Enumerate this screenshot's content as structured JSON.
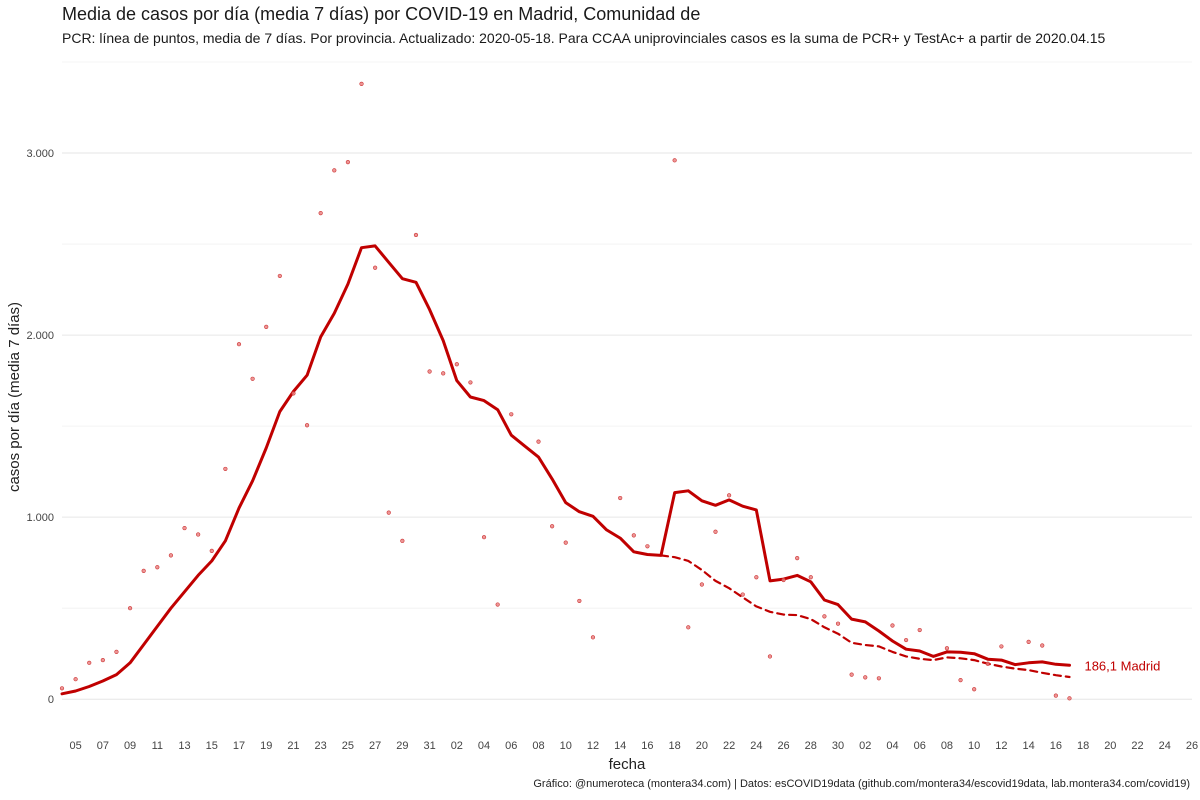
{
  "chart_data": {
    "type": "line",
    "title": "Media de casos por día (media 7 días) por COVID-19 en Madrid, Comunidad de",
    "subtitle": "PCR: línea de puntos, media de 7 días. Por provincia. Actualizado: 2020-05-18. Para CCAA uniprovinciales casos es la suma de PCR+ y TestAc+ a partir de 2020.04.15",
    "caption": "Gráfico: @numeroteca (montera34.com) | Datos: esCOVID19data (github.com/montera34/escovid19data, lab.montera34.com/covid19)",
    "xlabel": "fecha",
    "ylabel": "casos por día (media 7 días)",
    "xlim": [
      "2020-03-04",
      "2020-05-26"
    ],
    "ylim": [
      -180,
      3500
    ],
    "grid": true,
    "color": "#c00000",
    "y_ticks": [
      {
        "value": 0,
        "label": "0"
      },
      {
        "value": 1000,
        "label": "1.000"
      },
      {
        "value": 2000,
        "label": "2.000"
      },
      {
        "value": 3000,
        "label": "3.000"
      }
    ],
    "x_ticks": [
      {
        "date": "2020-03-05",
        "label": "05"
      },
      {
        "date": "2020-03-07",
        "label": "07"
      },
      {
        "date": "2020-03-09",
        "label": "09"
      },
      {
        "date": "2020-03-11",
        "label": "11"
      },
      {
        "date": "2020-03-13",
        "label": "13"
      },
      {
        "date": "2020-03-15",
        "label": "15"
      },
      {
        "date": "2020-03-17",
        "label": "17"
      },
      {
        "date": "2020-03-19",
        "label": "19"
      },
      {
        "date": "2020-03-21",
        "label": "21"
      },
      {
        "date": "2020-03-23",
        "label": "23"
      },
      {
        "date": "2020-03-25",
        "label": "25"
      },
      {
        "date": "2020-03-27",
        "label": "27"
      },
      {
        "date": "2020-03-29",
        "label": "29"
      },
      {
        "date": "2020-03-31",
        "label": "31"
      },
      {
        "date": "2020-04-02",
        "label": "02"
      },
      {
        "date": "2020-04-04",
        "label": "04"
      },
      {
        "date": "2020-04-06",
        "label": "06"
      },
      {
        "date": "2020-04-08",
        "label": "08"
      },
      {
        "date": "2020-04-10",
        "label": "10"
      },
      {
        "date": "2020-04-12",
        "label": "12"
      },
      {
        "date": "2020-04-14",
        "label": "14"
      },
      {
        "date": "2020-04-16",
        "label": "16"
      },
      {
        "date": "2020-04-18",
        "label": "18"
      },
      {
        "date": "2020-04-20",
        "label": "20"
      },
      {
        "date": "2020-04-22",
        "label": "22"
      },
      {
        "date": "2020-04-24",
        "label": "24"
      },
      {
        "date": "2020-04-26",
        "label": "26"
      },
      {
        "date": "2020-04-28",
        "label": "28"
      },
      {
        "date": "2020-04-30",
        "label": "30"
      },
      {
        "date": "2020-05-02",
        "label": "02"
      },
      {
        "date": "2020-05-04",
        "label": "04"
      },
      {
        "date": "2020-05-06",
        "label": "06"
      },
      {
        "date": "2020-05-08",
        "label": "08"
      },
      {
        "date": "2020-05-10",
        "label": "10"
      },
      {
        "date": "2020-05-12",
        "label": "12"
      },
      {
        "date": "2020-05-14",
        "label": "14"
      },
      {
        "date": "2020-05-16",
        "label": "16"
      },
      {
        "date": "2020-05-18",
        "label": "18"
      },
      {
        "date": "2020-05-20",
        "label": "20"
      },
      {
        "date": "2020-05-22",
        "label": "22"
      },
      {
        "date": "2020-05-24",
        "label": "24"
      },
      {
        "date": "2020-05-26",
        "label": "26"
      }
    ],
    "end_label": "186,1 Madrid",
    "end_label_point": {
      "date": "2020-05-17",
      "value": 186.1
    },
    "series": [
      {
        "style": "solid",
        "points": [
          [
            "2020-03-04",
            30
          ],
          [
            "2020-03-05",
            45
          ],
          [
            "2020-03-06",
            70
          ],
          [
            "2020-03-07",
            100
          ],
          [
            "2020-03-08",
            135
          ],
          [
            "2020-03-09",
            200
          ],
          [
            "2020-03-10",
            300
          ],
          [
            "2020-03-11",
            400
          ],
          [
            "2020-03-12",
            500
          ],
          [
            "2020-03-13",
            590
          ],
          [
            "2020-03-14",
            680
          ],
          [
            "2020-03-15",
            760
          ],
          [
            "2020-03-16",
            870
          ],
          [
            "2020-03-17",
            1050
          ],
          [
            "2020-03-18",
            1200
          ],
          [
            "2020-03-19",
            1380
          ],
          [
            "2020-03-20",
            1580
          ],
          [
            "2020-03-21",
            1690
          ],
          [
            "2020-03-22",
            1780
          ],
          [
            "2020-03-23",
            1990
          ],
          [
            "2020-03-24",
            2120
          ],
          [
            "2020-03-25",
            2280
          ],
          [
            "2020-03-26",
            2480
          ],
          [
            "2020-03-27",
            2490
          ],
          [
            "2020-03-28",
            2400
          ],
          [
            "2020-03-29",
            2310
          ],
          [
            "2020-03-30",
            2290
          ],
          [
            "2020-03-31",
            2140
          ],
          [
            "2020-04-01",
            1970
          ],
          [
            "2020-04-02",
            1750
          ],
          [
            "2020-04-03",
            1660
          ],
          [
            "2020-04-04",
            1640
          ],
          [
            "2020-04-05",
            1590
          ],
          [
            "2020-04-06",
            1450
          ],
          [
            "2020-04-07",
            1390
          ],
          [
            "2020-04-08",
            1330
          ],
          [
            "2020-04-09",
            1210
          ],
          [
            "2020-04-10",
            1080
          ],
          [
            "2020-04-11",
            1030
          ],
          [
            "2020-04-12",
            1005
          ],
          [
            "2020-04-13",
            930
          ],
          [
            "2020-04-14",
            885
          ],
          [
            "2020-04-15",
            810
          ],
          [
            "2020-04-16",
            795
          ],
          [
            "2020-04-17",
            790
          ],
          [
            "2020-04-18",
            1135
          ],
          [
            "2020-04-19",
            1145
          ],
          [
            "2020-04-20",
            1090
          ],
          [
            "2020-04-21",
            1065
          ],
          [
            "2020-04-22",
            1095
          ],
          [
            "2020-04-23",
            1060
          ],
          [
            "2020-04-24",
            1040
          ],
          [
            "2020-04-25",
            650
          ],
          [
            "2020-04-26",
            660
          ],
          [
            "2020-04-27",
            680
          ],
          [
            "2020-04-28",
            645
          ],
          [
            "2020-04-29",
            545
          ],
          [
            "2020-04-30",
            520
          ],
          [
            "2020-05-01",
            440
          ],
          [
            "2020-05-02",
            425
          ],
          [
            "2020-05-03",
            375
          ],
          [
            "2020-05-04",
            320
          ],
          [
            "2020-05-05",
            275
          ],
          [
            "2020-05-06",
            265
          ],
          [
            "2020-05-07",
            235
          ],
          [
            "2020-05-08",
            260
          ],
          [
            "2020-05-09",
            258
          ],
          [
            "2020-05-10",
            250
          ],
          [
            "2020-05-11",
            220
          ],
          [
            "2020-05-12",
            215
          ],
          [
            "2020-05-13",
            190
          ],
          [
            "2020-05-14",
            200
          ],
          [
            "2020-05-15",
            205
          ],
          [
            "2020-05-16",
            192
          ],
          [
            "2020-05-17",
            186.1
          ]
        ]
      },
      {
        "style": "dashed",
        "points": [
          [
            "2020-04-17",
            790
          ],
          [
            "2020-04-18",
            780
          ],
          [
            "2020-04-19",
            760
          ],
          [
            "2020-04-20",
            710
          ],
          [
            "2020-04-21",
            650
          ],
          [
            "2020-04-22",
            610
          ],
          [
            "2020-04-23",
            560
          ],
          [
            "2020-04-24",
            510
          ],
          [
            "2020-04-25",
            480
          ],
          [
            "2020-04-26",
            465
          ],
          [
            "2020-04-27",
            462
          ],
          [
            "2020-04-28",
            440
          ],
          [
            "2020-04-29",
            395
          ],
          [
            "2020-04-30",
            360
          ],
          [
            "2020-05-01",
            310
          ],
          [
            "2020-05-02",
            298
          ],
          [
            "2020-05-03",
            290
          ],
          [
            "2020-05-04",
            260
          ],
          [
            "2020-05-05",
            235
          ],
          [
            "2020-05-06",
            222
          ],
          [
            "2020-05-07",
            215
          ],
          [
            "2020-05-08",
            230
          ],
          [
            "2020-05-09",
            225
          ],
          [
            "2020-05-10",
            215
          ],
          [
            "2020-05-11",
            195
          ],
          [
            "2020-05-12",
            180
          ],
          [
            "2020-05-13",
            168
          ],
          [
            "2020-05-14",
            160
          ],
          [
            "2020-05-15",
            145
          ],
          [
            "2020-05-16",
            132
          ],
          [
            "2020-05-17",
            122
          ]
        ]
      },
      {
        "style": "points",
        "points": [
          [
            "2020-03-04",
            60
          ],
          [
            "2020-03-05",
            110
          ],
          [
            "2020-03-06",
            200
          ],
          [
            "2020-03-07",
            215
          ],
          [
            "2020-03-08",
            260
          ],
          [
            "2020-03-09",
            500
          ],
          [
            "2020-03-10",
            705
          ],
          [
            "2020-03-11",
            725
          ],
          [
            "2020-03-12",
            790
          ],
          [
            "2020-03-13",
            940
          ],
          [
            "2020-03-14",
            905
          ],
          [
            "2020-03-15",
            815
          ],
          [
            "2020-03-16",
            1265
          ],
          [
            "2020-03-17",
            1950
          ],
          [
            "2020-03-18",
            1760
          ],
          [
            "2020-03-19",
            2045
          ],
          [
            "2020-03-20",
            2325
          ],
          [
            "2020-03-21",
            1680
          ],
          [
            "2020-03-22",
            1505
          ],
          [
            "2020-03-23",
            2670
          ],
          [
            "2020-03-24",
            2905
          ],
          [
            "2020-03-25",
            2950
          ],
          [
            "2020-03-26",
            3380
          ],
          [
            "2020-03-27",
            2370
          ],
          [
            "2020-03-28",
            1025
          ],
          [
            "2020-03-29",
            870
          ],
          [
            "2020-03-30",
            2550
          ],
          [
            "2020-03-31",
            1800
          ],
          [
            "2020-04-01",
            1790
          ],
          [
            "2020-04-02",
            1840
          ],
          [
            "2020-04-03",
            1740
          ],
          [
            "2020-04-04",
            890
          ],
          [
            "2020-04-05",
            520
          ],
          [
            "2020-04-06",
            1565
          ],
          [
            "2020-04-08",
            1415
          ],
          [
            "2020-04-09",
            950
          ],
          [
            "2020-04-10",
            860
          ],
          [
            "2020-04-11",
            540
          ],
          [
            "2020-04-12",
            340
          ],
          [
            "2020-04-14",
            1105
          ],
          [
            "2020-04-15",
            900
          ],
          [
            "2020-04-16",
            840
          ],
          [
            "2020-04-18",
            2960
          ],
          [
            "2020-04-19",
            395
          ],
          [
            "2020-04-20",
            630
          ],
          [
            "2020-04-21",
            920
          ],
          [
            "2020-04-22",
            1120
          ],
          [
            "2020-04-23",
            575
          ],
          [
            "2020-04-24",
            670
          ],
          [
            "2020-04-25",
            235
          ],
          [
            "2020-04-26",
            655
          ],
          [
            "2020-04-27",
            775
          ],
          [
            "2020-04-28",
            670
          ],
          [
            "2020-04-29",
            455
          ],
          [
            "2020-04-30",
            415
          ],
          [
            "2020-05-01",
            135
          ],
          [
            "2020-05-02",
            120
          ],
          [
            "2020-05-03",
            115
          ],
          [
            "2020-05-04",
            405
          ],
          [
            "2020-05-05",
            325
          ],
          [
            "2020-05-06",
            380
          ],
          [
            "2020-05-08",
            280
          ],
          [
            "2020-05-09",
            105
          ],
          [
            "2020-05-10",
            55
          ],
          [
            "2020-05-11",
            195
          ],
          [
            "2020-05-12",
            290
          ],
          [
            "2020-05-14",
            315
          ],
          [
            "2020-05-15",
            295
          ],
          [
            "2020-05-16",
            20
          ],
          [
            "2020-05-17",
            5
          ]
        ]
      }
    ]
  }
}
